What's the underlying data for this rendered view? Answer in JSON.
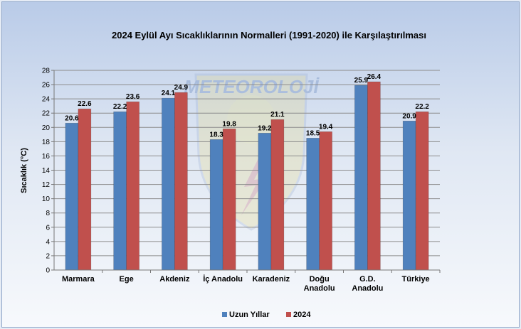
{
  "chart_data": {
    "type": "bar",
    "title": "2024 Eylül Ayı Sıcaklıklarının Normalleri (1991-2020) ile Karşılaştırılması",
    "xlabel": "",
    "ylabel": "Sıcaklık (°C)",
    "ylim": [
      0,
      28
    ],
    "ytick_step": 2,
    "grid": true,
    "legend_position": "bottom",
    "categories": [
      "Marmara",
      "Ege",
      "Akdeniz",
      "İç Anadolu",
      "Karadeniz",
      "Doğu Anadolu",
      "G.D. Anadolu",
      "Türkiye"
    ],
    "category_lines": [
      [
        "Marmara"
      ],
      [
        "Ege"
      ],
      [
        "Akdeniz"
      ],
      [
        "İç Anadolu"
      ],
      [
        "Karadeniz"
      ],
      [
        "Doğu",
        "Anadolu"
      ],
      [
        "G.D.",
        "Anadolu"
      ],
      [
        "Türkiye"
      ]
    ],
    "series": [
      {
        "name": "Uzun Yıllar",
        "color": "#4f81bd",
        "values": [
          20.6,
          22.2,
          24.1,
          18.3,
          19.2,
          18.5,
          25.9,
          20.9
        ]
      },
      {
        "name": "2024",
        "color": "#c0504d",
        "values": [
          22.6,
          23.6,
          24.9,
          19.8,
          21.1,
          19.4,
          26.4,
          22.2
        ]
      }
    ],
    "watermark": "METEOROLOJİ"
  }
}
